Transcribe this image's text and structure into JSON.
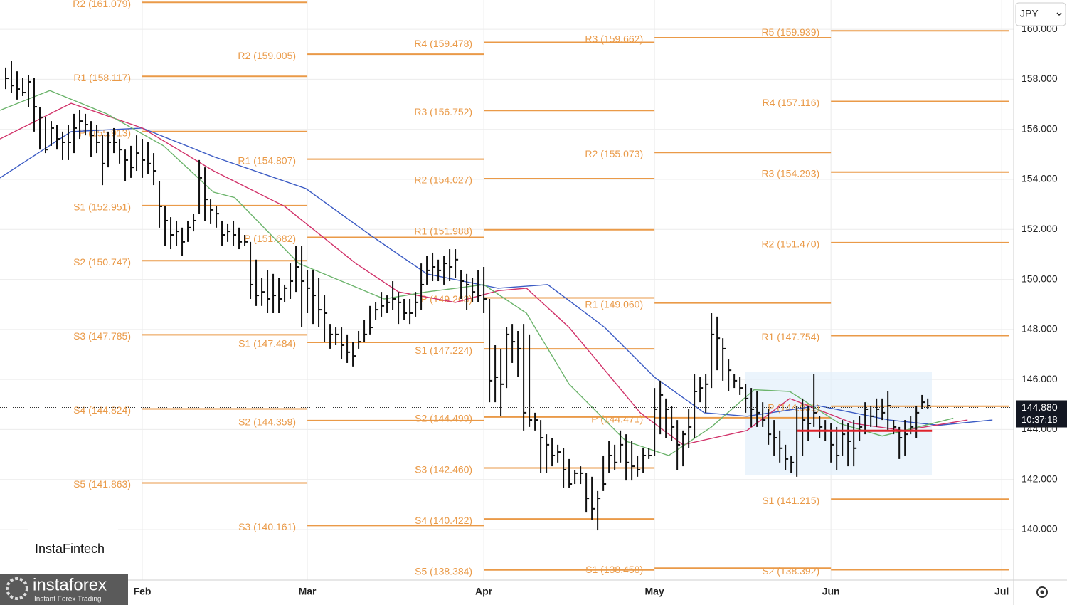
{
  "chart_data": {
    "type": "ohlc",
    "currency": "JPY",
    "brand": "InstaFintech",
    "logo": "instaforex",
    "logo_tagline": "Instant Forex Trading",
    "xlim": [
      0,
      178.1
    ],
    "ylim": [
      137.98,
      161.17
    ],
    "xticks": [
      {
        "value": 25,
        "label": "Feb"
      },
      {
        "value": 54,
        "label": "Mar"
      },
      {
        "value": 85,
        "label": "Apr"
      },
      {
        "value": 115,
        "label": "May"
      },
      {
        "value": 146,
        "label": "Jun"
      },
      {
        "value": 176,
        "label": "Jul"
      }
    ],
    "yticks": [
      {
        "value": 140,
        "label": "140.000"
      },
      {
        "value": 142,
        "label": "142.000"
      },
      {
        "value": 144,
        "label": "144.000"
      },
      {
        "value": 146,
        "label": "146.000"
      },
      {
        "value": 148,
        "label": "148.000"
      },
      {
        "value": 150,
        "label": "150.000"
      },
      {
        "value": 152,
        "label": "152.000"
      },
      {
        "value": 154,
        "label": "154.000"
      },
      {
        "value": 156,
        "label": "156.000"
      },
      {
        "value": 158,
        "label": "158.000"
      },
      {
        "value": 160,
        "label": "160.000"
      }
    ],
    "grid": true,
    "bar_color": "#111111",
    "current_price": {
      "value": 144.88,
      "label": "144.880",
      "countdown": "10:37:18"
    },
    "poc": {
      "value": 143.95,
      "x_range": [
        140,
        163.75
      ],
      "color": "#e0242c"
    },
    "pivot_color": "#ea9a48",
    "pivot_periods": [
      {
        "x_range": [
          25,
          54
        ],
        "levels": [
          {
            "label": "R2 (161.079)",
            "value": 161.079
          },
          {
            "label": "R1 (158.117)",
            "value": 158.117
          },
          {
            "label": "P (155.913)",
            "value": 155.913
          },
          {
            "label": "S1 (152.951)",
            "value": 152.951
          },
          {
            "label": "S2 (150.747)",
            "value": 150.747
          },
          {
            "label": "S3 (147.785)",
            "value": 147.785
          },
          {
            "label": "S4 (144.824)",
            "value": 144.824
          },
          {
            "label": "S5 (141.863)",
            "value": 141.863
          }
        ]
      },
      {
        "x_range": [
          54,
          85
        ],
        "levels": [
          {
            "label": "R2 (159.005)",
            "value": 159.005
          },
          {
            "label": "R1 (154.807)",
            "value": 154.807
          },
          {
            "label": "P (151.682)",
            "value": 151.682
          },
          {
            "label": "S1 (147.484)",
            "value": 147.484
          },
          {
            "label": "S2 (144.359)",
            "value": 144.359
          },
          {
            "label": "S3 (140.161)",
            "value": 140.161
          }
        ]
      },
      {
        "x_range": [
          85,
          115
        ],
        "levels": [
          {
            "label": "R4 (159.478)",
            "value": 159.478
          },
          {
            "label": "R3 (156.752)",
            "value": 156.752
          },
          {
            "label": "R2 (154.027)",
            "value": 154.027
          },
          {
            "label": "R1 (151.988)",
            "value": 151.988
          },
          {
            "label": "P (149.263)",
            "value": 149.263
          },
          {
            "label": "S1 (147.224)",
            "value": 147.224
          },
          {
            "label": "S2 (144.499)",
            "value": 144.499
          },
          {
            "label": "S3 (142.460)",
            "value": 142.46
          },
          {
            "label": "S4 (140.422)",
            "value": 140.422
          },
          {
            "label": "S5 (138.384)",
            "value": 138.384
          }
        ]
      },
      {
        "x_range": [
          115,
          146
        ],
        "levels": [
          {
            "label": "R3 (159.662)",
            "value": 159.662
          },
          {
            "label": "R2 (155.073)",
            "value": 155.073
          },
          {
            "label": "R1 (149.060)",
            "value": 149.06
          },
          {
            "label": "P (144.471)",
            "value": 144.471
          },
          {
            "label": "S1 (138.458)",
            "value": 138.458
          }
        ]
      },
      {
        "x_range": [
          146,
          177.25
        ],
        "levels": [
          {
            "label": "R5 (159.939)",
            "value": 159.939
          },
          {
            "label": "R4 (157.116)",
            "value": 157.116
          },
          {
            "label": "R3 (154.293)",
            "value": 154.293
          },
          {
            "label": "R2 (151.470)",
            "value": 151.47
          },
          {
            "label": "R1 (147.754)",
            "value": 147.754
          },
          {
            "label": "P (144.931)",
            "value": 144.931
          },
          {
            "label": "S1 (141.215)",
            "value": 141.215
          },
          {
            "label": "S2 (138.392)",
            "value": 138.392
          }
        ]
      }
    ],
    "moving_averages": [
      {
        "color": "#3b5bc4",
        "x": [
          0,
          12.5,
          25,
          37.5,
          53.75,
          65,
          75,
          87.5,
          96.25,
          106.25,
          115,
          123.75,
          131.25,
          143.75,
          156.25,
          165,
          174.375
        ],
        "values": [
          154.06,
          155.91,
          156.05,
          154.91,
          153.63,
          151.78,
          150.22,
          149.65,
          149.79,
          148.08,
          146.09,
          144.67,
          144.53,
          144.95,
          144.38,
          144.17,
          144.38
        ]
      },
      {
        "color": "#d1336a",
        "x": [
          0,
          12.5,
          25,
          37.5,
          50,
          62.5,
          70,
          80,
          87.5,
          92.5,
          100,
          112.5,
          120,
          131.25,
          138.75,
          150,
          158.75,
          170
        ],
        "values": [
          155.62,
          157.04,
          156.05,
          154.34,
          152.92,
          150.64,
          149.5,
          149.08,
          149.55,
          149.65,
          148.08,
          144.67,
          143.39,
          143.96,
          145.24,
          144.24,
          143.96,
          144.38
        ]
      },
      {
        "color": "#6cb46c",
        "x": [
          0,
          8.75,
          18.75,
          28.75,
          37.5,
          41.25,
          52.5,
          60,
          67.5,
          75,
          85,
          92.5,
          100,
          110,
          117.5,
          125,
          132.5,
          138.75,
          147.5,
          155,
          167.5
        ],
        "values": [
          156.76,
          157.55,
          156.62,
          155.34,
          153.49,
          153.27,
          150.64,
          149.93,
          149.22,
          149.5,
          149.79,
          148.65,
          145.81,
          143.53,
          142.96,
          144.1,
          145.59,
          145.52,
          144.24,
          143.74,
          144.45
        ]
      }
    ],
    "bars": {
      "x": [
        1,
        2,
        3,
        4,
        5,
        6,
        7,
        8,
        9,
        10,
        11,
        12,
        13,
        14,
        15,
        16,
        17,
        18,
        19,
        20,
        21,
        22,
        23,
        24,
        25,
        26,
        27,
        28,
        29,
        30,
        31,
        32,
        33,
        34,
        35,
        36,
        37,
        38,
        39,
        40,
        41,
        42,
        43,
        44,
        45,
        46,
        47,
        48,
        49,
        50,
        51,
        52,
        53,
        54,
        55,
        56,
        57,
        58,
        59,
        60,
        61,
        62,
        63,
        64,
        65,
        66,
        67,
        68,
        69,
        70,
        71,
        72,
        73,
        74,
        75,
        76,
        77,
        78,
        79,
        80,
        81,
        82,
        83,
        84,
        85,
        86,
        87,
        88,
        89,
        90,
        91,
        92,
        93,
        94,
        95,
        96,
        97,
        98,
        99,
        100,
        101,
        102,
        103,
        104,
        105,
        106,
        107,
        108,
        109,
        110,
        111,
        112,
        113,
        114,
        115,
        116,
        117,
        118,
        119,
        120,
        121,
        122,
        123,
        124,
        125,
        126,
        127,
        128,
        129,
        130,
        131,
        132,
        133,
        134,
        135,
        136,
        137,
        138,
        139,
        140,
        141,
        142,
        143,
        144,
        145,
        146,
        147,
        148,
        149,
        150,
        151,
        152,
        153,
        154,
        155,
        156,
        157,
        158,
        159,
        160,
        161,
        162,
        163
      ],
      "high": [
        158.47,
        158.75,
        158.32,
        158.04,
        158.18,
        158.04,
        156.9,
        156.48,
        156.33,
        156.19,
        155.91,
        156.19,
        156.62,
        156.76,
        156.62,
        156.33,
        156.19,
        155.76,
        155.91,
        156.05,
        155.62,
        155.19,
        155.34,
        155.76,
        155.62,
        155.48,
        155.05,
        153.92,
        152.92,
        152.49,
        152.35,
        152.07,
        152.35,
        152.63,
        154.77,
        154.48,
        153.2,
        152.92,
        152.35,
        152.21,
        152.35,
        152.07,
        151.78,
        151.5,
        150.79,
        150.07,
        150.36,
        150.22,
        150.07,
        149.79,
        150.64,
        151.35,
        151.35,
        150.36,
        150.36,
        150.07,
        149.36,
        148.22,
        148.08,
        148.08,
        147.8,
        147.51,
        147.94,
        148.37,
        148.94,
        149.08,
        149.5,
        149.36,
        149.93,
        149.5,
        149.22,
        149.22,
        149.5,
        150.64,
        150.93,
        151.07,
        150.79,
        150.93,
        151.21,
        151.21,
        150.36,
        150.22,
        150.07,
        150.36,
        150.5,
        149.22,
        147.37,
        147.23,
        148.08,
        148.22,
        147.94,
        148.22,
        147.8,
        144.67,
        144.38,
        143.81,
        143.67,
        143.39,
        143.25,
        142.82,
        142.39,
        142.53,
        142.25,
        142.11,
        141.54,
        142.96,
        143.53,
        143.39,
        143.96,
        143.81,
        143.53,
        142.96,
        143.25,
        143.25,
        145.66,
        145.95,
        145.24,
        144.95,
        144.38,
        143.96,
        144.81,
        146.23,
        146.09,
        146.23,
        148.65,
        148.51,
        147.65,
        146.8,
        146.23,
        146.09,
        145.81,
        145.66,
        145.52,
        145.09,
        144.81,
        144.38,
        143.96,
        143.39,
        142.96,
        144.95,
        145.24,
        144.95,
        146.23,
        144.53,
        144.38,
        144.24,
        144.1,
        144.38,
        144.24,
        144.38,
        144.53,
        145.09,
        144.95,
        145.24,
        145.24,
        145.52,
        144.38,
        144.1,
        144.38,
        144.53,
        144.95,
        145.38,
        145.24
      ],
      "low": [
        157.61,
        157.47,
        157.19,
        157.33,
        156.9,
        155.91,
        155.19,
        155.05,
        155.34,
        155.19,
        154.77,
        154.77,
        155.05,
        155.62,
        155.76,
        154.91,
        155.05,
        153.77,
        154.48,
        155.05,
        154.63,
        153.92,
        154.06,
        154.34,
        154.06,
        154.2,
        153.77,
        152.07,
        151.35,
        151.21,
        151.35,
        150.93,
        151.5,
        151.92,
        152.63,
        152.35,
        152.21,
        152.07,
        151.35,
        151.5,
        151.35,
        151.21,
        151.35,
        149.22,
        148.94,
        148.94,
        148.65,
        148.65,
        148.65,
        149.08,
        149.22,
        149.5,
        148.08,
        148.65,
        148.22,
        148.08,
        147.51,
        147.23,
        147.37,
        146.8,
        146.66,
        146.52,
        147.23,
        147.51,
        147.8,
        148.37,
        148.51,
        148.65,
        148.79,
        148.22,
        148.37,
        148.22,
        148.51,
        148.79,
        149.79,
        149.93,
        149.93,
        149.79,
        149.93,
        150.07,
        149.22,
        148.79,
        149.08,
        149.08,
        148.65,
        145.09,
        145.09,
        144.53,
        145.66,
        146.66,
        146.09,
        143.96,
        144.1,
        143.96,
        142.25,
        142.25,
        142.53,
        142.68,
        141.68,
        141.68,
        141.82,
        141.82,
        140.68,
        140.4,
        139.97,
        141.54,
        142.25,
        142.39,
        142.68,
        141.96,
        141.96,
        142.11,
        142.25,
        142.82,
        142.96,
        143.81,
        143.67,
        143.53,
        142.39,
        142.53,
        143.25,
        143.67,
        145.09,
        144.67,
        145.66,
        146.37,
        145.95,
        145.52,
        145.66,
        145.38,
        144.67,
        144.1,
        144.1,
        144.1,
        143.39,
        142.96,
        142.68,
        142.39,
        142.25,
        142.11,
        142.96,
        143.53,
        144.1,
        143.67,
        143.53,
        142.68,
        142.39,
        142.96,
        142.53,
        142.53,
        143.53,
        143.81,
        144.1,
        144.1,
        144.38,
        143.96,
        143.81,
        142.82,
        142.96,
        143.81,
        143.67,
        144.81,
        144.81
      ],
      "close": [
        158.04,
        157.75,
        157.61,
        157.47,
        157.9,
        156.9,
        156.48,
        155.19,
        156.05,
        155.62,
        155.48,
        155.48,
        156.05,
        156.33,
        156.19,
        155.76,
        155.48,
        154.63,
        155.48,
        155.48,
        155.19,
        154.77,
        154.48,
        155.05,
        154.77,
        154.63,
        154.34,
        152.92,
        152.35,
        151.78,
        151.92,
        151.5,
        152.07,
        152.35,
        154.06,
        153.2,
        152.78,
        152.63,
        151.78,
        151.92,
        151.78,
        151.5,
        151.5,
        149.79,
        149.36,
        149.5,
        149.22,
        149.36,
        149.22,
        149.65,
        149.93,
        150.5,
        149.93,
        149.65,
        149.36,
        148.79,
        148.65,
        147.8,
        147.8,
        147.37,
        147.09,
        146.94,
        147.51,
        147.8,
        148.08,
        148.79,
        148.94,
        149.08,
        149.22,
        149.08,
        148.65,
        148.65,
        149.08,
        149.79,
        150.36,
        150.5,
        150.36,
        150.64,
        150.5,
        150.79,
        149.93,
        149.79,
        149.5,
        149.36,
        149.22,
        145.95,
        146.09,
        145.81,
        147.8,
        147.51,
        147.23,
        144.67,
        144.38,
        144.38,
        143.67,
        143.39,
        142.96,
        143.1,
        142.39,
        141.82,
        142.25,
        142.25,
        141.25,
        140.83,
        141.25,
        141.82,
        142.96,
        142.68,
        143.39,
        142.68,
        142.53,
        142.39,
        142.96,
        142.96,
        144.81,
        145.38,
        144.81,
        144.1,
        143.39,
        143.81,
        144.1,
        145.52,
        145.66,
        145.81,
        147.8,
        147.65,
        147.23,
        146.37,
        145.95,
        145.66,
        145.24,
        144.81,
        144.67,
        144.38,
        143.81,
        143.67,
        143.25,
        142.82,
        142.68,
        143.96,
        144.38,
        144.24,
        144.67,
        144.1,
        143.96,
        143.39,
        142.96,
        143.81,
        143.53,
        143.25,
        144.1,
        144.81,
        144.53,
        144.81,
        144.67,
        144.95,
        144.1,
        143.67,
        143.81,
        144.1,
        144.67,
        145.09,
        144.95
      ]
    }
  }
}
